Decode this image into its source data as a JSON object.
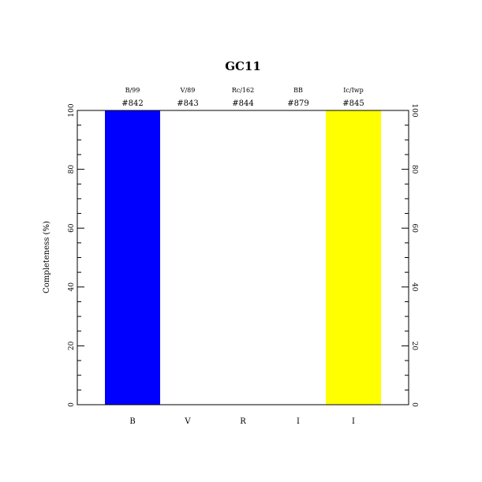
{
  "chart_data": {
    "type": "bar",
    "title": "GC11",
    "ylabel": "Completeness (%)",
    "xlabel": "",
    "ylim": [
      0,
      100
    ],
    "yticks": [
      0,
      20,
      40,
      60,
      80,
      100
    ],
    "categories": [
      "B",
      "V",
      "R",
      "I",
      "I"
    ],
    "filters": [
      "B/99",
      "V/89",
      "Rc/162",
      "BB",
      "Ic/Iwp"
    ],
    "ids": [
      "#842",
      "#843",
      "#844",
      "#879",
      "#845"
    ],
    "values": [
      100,
      0,
      0,
      0,
      100
    ],
    "colors": [
      "#0000ff",
      "#ffffff",
      "#ffffff",
      "#ffffff",
      "#ffff00"
    ],
    "grid": false,
    "legend": "none"
  }
}
